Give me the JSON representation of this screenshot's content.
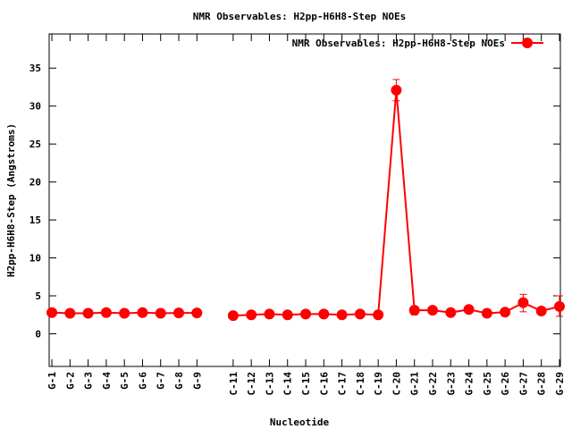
{
  "chart_data": {
    "type": "line",
    "title": "NMR Observables: H2pp-H6H8-Step NOEs",
    "xlabel": "Nucleotide",
    "ylabel": "H2pp-H6H8-Step (Angstroms)",
    "ylim": [
      -4.3,
      39.5
    ],
    "yticks": [
      0,
      5,
      10,
      15,
      20,
      25,
      30,
      35
    ],
    "grid": false,
    "legend_position": "top-right",
    "xlim": [
      0.85,
      29.05
    ],
    "categories": [
      "G-1",
      "G-2",
      "G-3",
      "G-4",
      "G-5",
      "G-6",
      "G-7",
      "G-8",
      "G-9",
      "C-11",
      "C-12",
      "C-13",
      "C-14",
      "C-15",
      "C-16",
      "C-17",
      "C-18",
      "C-19",
      "C-20",
      "G-21",
      "G-22",
      "G-23",
      "G-24",
      "G-25",
      "G-26",
      "G-27",
      "G-28",
      "G-29"
    ],
    "x": [
      1,
      2,
      3,
      4,
      5,
      6,
      7,
      8,
      9,
      11,
      12,
      13,
      14,
      15,
      16,
      17,
      18,
      19,
      20,
      21,
      22,
      23,
      24,
      25,
      26,
      27,
      28,
      29
    ],
    "series": [
      {
        "name": "NMR Observables: H2pp-H6H8-Step NOEs",
        "color": "#ff0000",
        "values": [
          2.8,
          2.7,
          2.7,
          2.8,
          2.7,
          2.8,
          2.7,
          2.75,
          2.75,
          2.4,
          2.5,
          2.6,
          2.5,
          2.6,
          2.6,
          2.5,
          2.6,
          2.5,
          32.1,
          3.1,
          3.1,
          2.8,
          3.2,
          2.7,
          2.85,
          4.1,
          3.0,
          3.6
        ],
        "err_low": [
          2.7,
          2.6,
          2.6,
          2.7,
          2.6,
          2.7,
          2.6,
          2.65,
          2.65,
          2.3,
          2.4,
          2.5,
          2.4,
          2.5,
          2.5,
          2.4,
          2.5,
          2.4,
          30.7,
          2.5,
          2.9,
          2.6,
          2.9,
          2.5,
          2.6,
          2.9,
          2.8,
          2.3
        ],
        "err_high": [
          2.9,
          2.8,
          2.8,
          2.9,
          2.8,
          2.9,
          2.8,
          2.85,
          2.85,
          2.5,
          2.6,
          2.7,
          2.6,
          2.7,
          2.7,
          2.6,
          2.7,
          2.6,
          33.5,
          3.6,
          3.3,
          3.0,
          3.5,
          2.9,
          3.1,
          5.2,
          3.2,
          5.0
        ]
      }
    ]
  }
}
